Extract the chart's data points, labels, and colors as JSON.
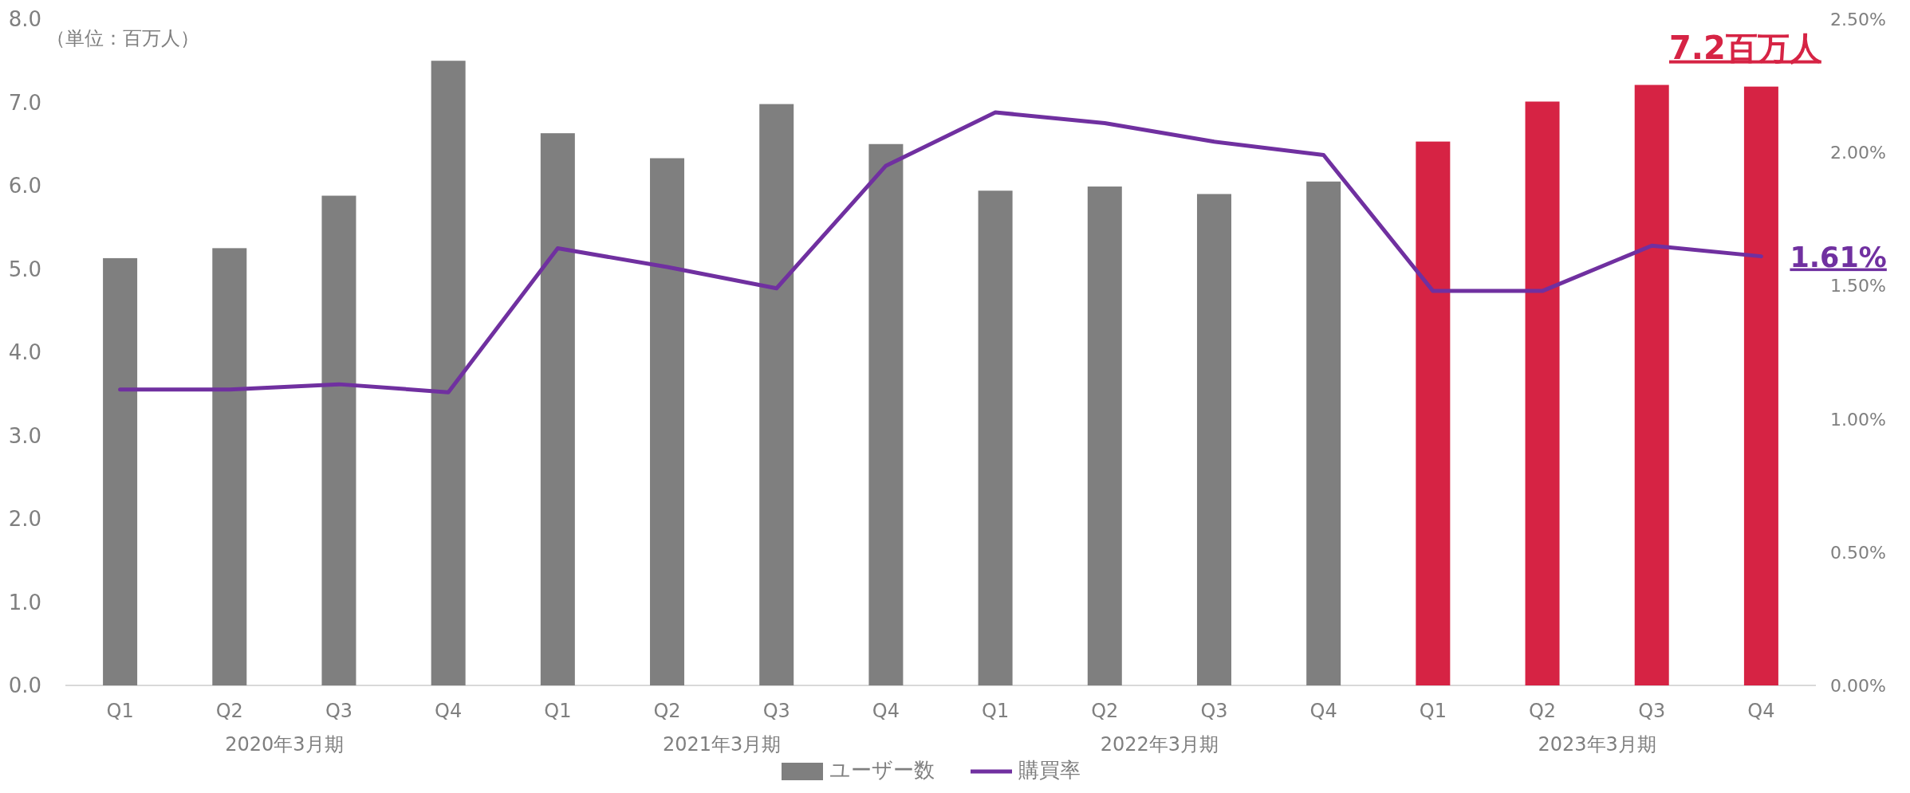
{
  "chart_data": {
    "type": "bar",
    "ylabel": "（単位：百万人）",
    "categories": [
      "Q1",
      "Q2",
      "Q3",
      "Q4",
      "Q1",
      "Q2",
      "Q3",
      "Q4",
      "Q1",
      "Q2",
      "Q3",
      "Q4",
      "Q1",
      "Q2",
      "Q3",
      "Q4"
    ],
    "annotations": [
      "2020年3月期",
      "2021年3月期",
      "2022年3月期",
      "2023年3月期"
    ],
    "series": [
      {
        "name": "ユーザー数",
        "colors": [
          "#7f7f7f",
          "#7f7f7f",
          "#7f7f7f",
          "#7f7f7f",
          "#7f7f7f",
          "#7f7f7f",
          "#7f7f7f",
          "#7f7f7f",
          "#7f7f7f",
          "#7f7f7f",
          "#7f7f7f",
          "#7f7f7f",
          "#d62344",
          "#d62344",
          "#d62344",
          "#d62344"
        ],
        "values": [
          5.13,
          5.25,
          5.88,
          7.5,
          6.63,
          6.33,
          6.98,
          6.5,
          5.94,
          5.99,
          5.9,
          6.05,
          6.53,
          7.01,
          7.21,
          7.19
        ],
        "value_labels": [
          null,
          null,
          null,
          null,
          null,
          null,
          null,
          null,
          null,
          null,
          null,
          null,
          null,
          null,
          null,
          "7.2百万人"
        ]
      },
      {
        "name": "購買率",
        "type": "line",
        "axis": "y2",
        "color": "#7030a0",
        "values": [
          1.11,
          1.11,
          1.13,
          1.1,
          1.64,
          1.57,
          1.49,
          1.95,
          2.15,
          2.11,
          2.04,
          1.99,
          1.48,
          1.48,
          1.65,
          1.61
        ],
        "value_labels": [
          null,
          null,
          null,
          null,
          null,
          null,
          null,
          null,
          null,
          null,
          null,
          null,
          null,
          null,
          null,
          "1.61%"
        ]
      }
    ],
    "ylim": [
      0,
      8
    ],
    "yticks": [
      {
        "value": 0,
        "label": "0.0"
      },
      {
        "value": 1,
        "label": "1.0"
      },
      {
        "value": 2,
        "label": "2.0"
      },
      {
        "value": 3,
        "label": "3.0"
      },
      {
        "value": 4,
        "label": "4.0"
      },
      {
        "value": 5,
        "label": "5.0"
      },
      {
        "value": 6,
        "label": "6.0"
      },
      {
        "value": 7,
        "label": "7.0"
      },
      {
        "value": 8,
        "label": "8.0"
      }
    ],
    "y2lim": [
      0,
      2.5
    ],
    "y2ticks": [
      {
        "value": 0,
        "label": "0.00%"
      },
      {
        "value": 0.5,
        "label": "0.50%"
      },
      {
        "value": 1,
        "label": "1.00%"
      },
      {
        "value": 1.5,
        "label": "1.50%"
      },
      {
        "value": 2,
        "label": "2.00%"
      },
      {
        "value": 2.5,
        "label": "2.50%"
      }
    ],
    "legend": "bottom"
  }
}
